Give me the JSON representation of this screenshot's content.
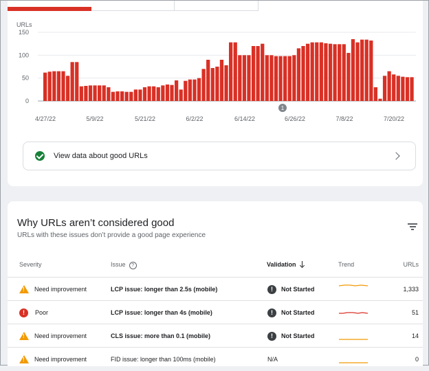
{
  "chart_data": {
    "type": "bar",
    "ylabel": "URLs",
    "ylim": [
      0,
      150
    ],
    "yticks": [
      "150",
      "100",
      "50",
      "0"
    ],
    "xtick_labels": [
      "4/27/22",
      "5/9/22",
      "5/21/22",
      "6/2/22",
      "6/14/22",
      "6/26/22",
      "7/8/22",
      "7/20/22"
    ],
    "annotation": "1",
    "bar_color": "#d93025",
    "values": [
      62,
      64,
      65,
      65,
      65,
      55,
      85,
      85,
      32,
      33,
      34,
      34,
      34,
      34,
      30,
      20,
      21,
      21,
      20,
      20,
      25,
      25,
      30,
      32,
      32,
      30,
      34,
      36,
      35,
      45,
      25,
      44,
      47,
      47,
      50,
      70,
      90,
      72,
      75,
      90,
      78,
      128,
      128,
      100,
      100,
      100,
      120,
      120,
      125,
      100,
      100,
      98,
      98,
      98,
      98,
      100,
      115,
      120,
      125,
      128,
      128,
      128,
      126,
      125,
      124,
      124,
      124,
      105,
      135,
      128,
      134,
      134,
      132,
      30,
      5,
      55,
      65,
      58,
      55,
      53,
      52,
      52
    ]
  },
  "good_urls": {
    "label": "View data about good URLs"
  },
  "issues": {
    "title": "Why URLs aren’t considered good",
    "subtitle": "URLs with these issues don’t provide a good page experience",
    "headers": {
      "severity": "Severity",
      "issue": "Issue",
      "validation": "Validation",
      "trend": "Trend",
      "urls": "URLs"
    },
    "rows": [
      {
        "severity": "Need improvement",
        "issue": "LCP issue: longer than 2.5s (mobile)",
        "validation": "Not Started",
        "trend_color": "#f29900",
        "urls": "1,333"
      },
      {
        "severity": "Poor",
        "issue": "LCP issue: longer than 4s (mobile)",
        "validation": "Not Started",
        "trend_color": "#d93025",
        "urls": "51"
      },
      {
        "severity": "Need improvement",
        "issue": "CLS issue: more than 0.1 (mobile)",
        "validation": "Not Started",
        "trend_color": "#f29900",
        "urls": "14"
      },
      {
        "severity": "Need improvement",
        "issue": "FID issue: longer than 100ms (mobile)",
        "validation": "N/A",
        "trend_color": "#f29900",
        "urls": "0"
      }
    ]
  }
}
